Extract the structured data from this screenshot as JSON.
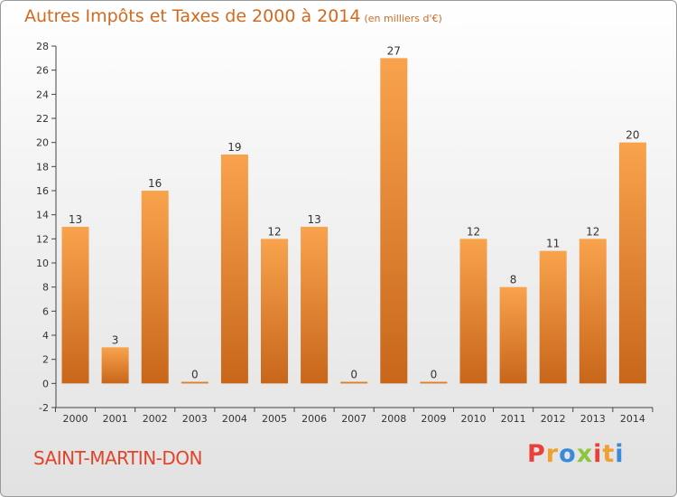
{
  "title": "Autres Impôts et Taxes de 2000 à 2014",
  "subtitle": "(en milliers d'€)",
  "commune": "SAINT-MARTIN-DON",
  "logo": {
    "letters": [
      "P",
      "r",
      "o",
      "x",
      "i",
      "t",
      "i"
    ],
    "colors": [
      "#e8403a",
      "#f0a030",
      "#3a8ad8",
      "#8cc63f",
      "#e8403a",
      "#f0a030",
      "#3a8ad8"
    ]
  },
  "colors": {
    "bar_light": "#f9a34d",
    "bar_dark": "#c8661a",
    "title": "#d2691e",
    "commune": "#e0452a"
  },
  "chart_data": {
    "type": "bar",
    "categories": [
      "2000",
      "2001",
      "2002",
      "2003",
      "2004",
      "2005",
      "2006",
      "2007",
      "2008",
      "2009",
      "2010",
      "2011",
      "2012",
      "2013",
      "2014"
    ],
    "values": [
      13,
      3,
      16,
      0,
      19,
      12,
      13,
      0,
      27,
      0,
      12,
      8,
      11,
      12,
      20
    ],
    "title": "Autres Impôts et Taxes de 2000 à 2014",
    "subtitle": "(en milliers d'€)",
    "xlabel": "",
    "ylabel": "",
    "ylim": [
      -2,
      28
    ],
    "yticks": [
      -2,
      0,
      2,
      4,
      6,
      8,
      10,
      12,
      14,
      16,
      18,
      20,
      22,
      24,
      26,
      28
    ],
    "grid": false,
    "legend": "none"
  }
}
